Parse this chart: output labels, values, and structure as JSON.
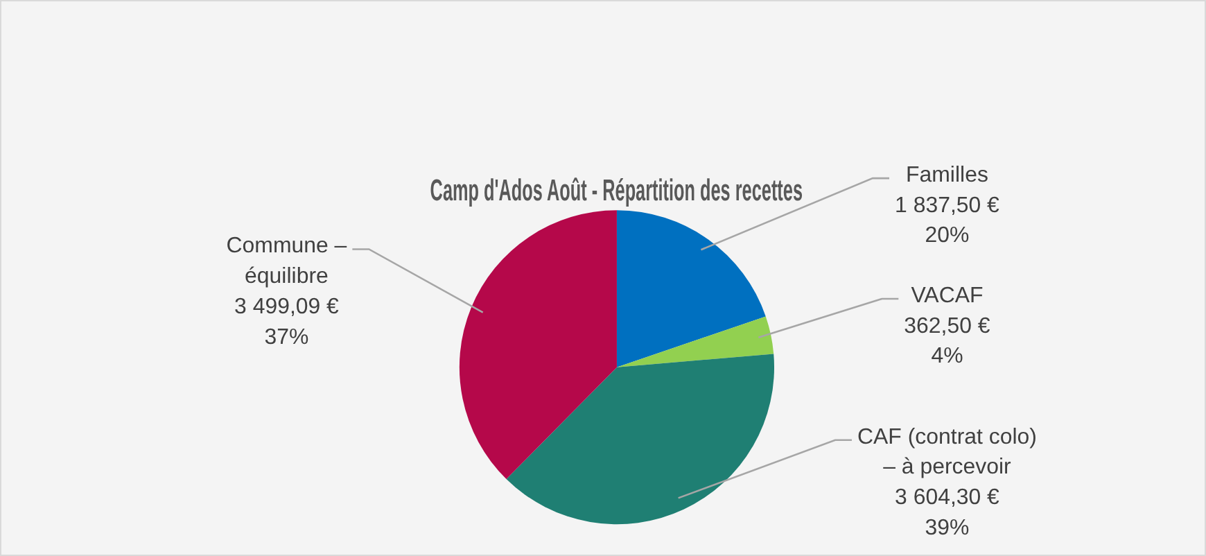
{
  "chart_data": {
    "type": "pie",
    "title": "Camp d'Ados Août - Répartition des recettes",
    "categories": [
      "Familles",
      "VACAF",
      "CAF (contrat colo) – à percevoir",
      "Commune – équilibre"
    ],
    "values": [
      1837.5,
      362.5,
      3604.3,
      3499.09
    ],
    "colors": [
      "#0070c0",
      "#92d050",
      "#1f7f73",
      "#b5084a"
    ],
    "value_labels": [
      "1 837,50 €\n20%",
      "362,50 €\n4%",
      "3 604,30 €\n39%",
      "3 499,09 €\n37%"
    ],
    "legend": false
  }
}
